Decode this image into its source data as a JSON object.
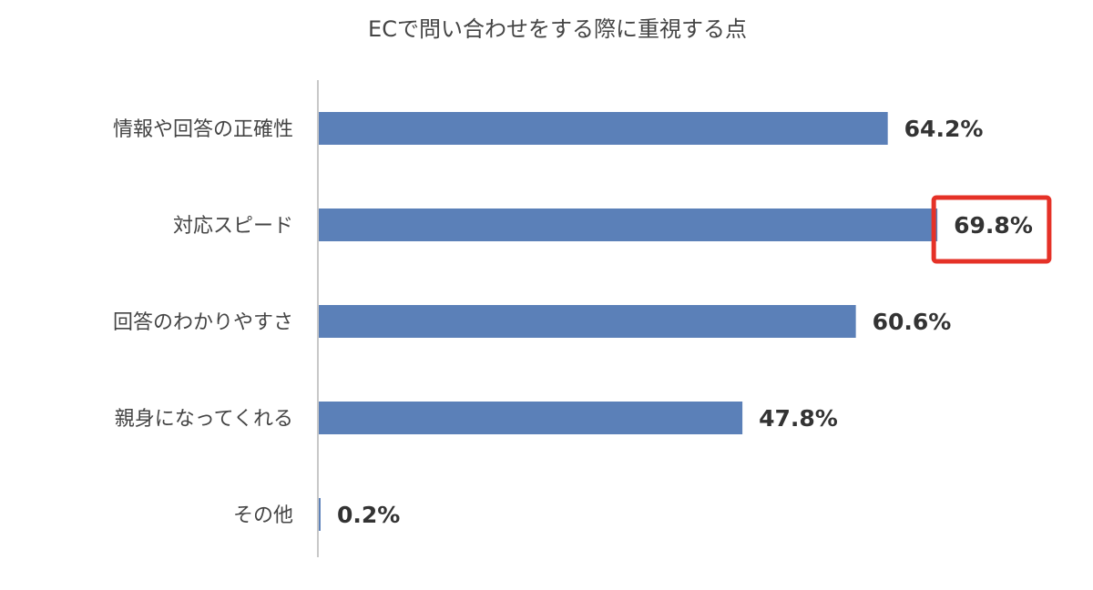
{
  "chart_data": {
    "type": "bar",
    "orientation": "horizontal",
    "title": "ECで問い合わせをする際に重視する点",
    "categories": [
      "情報や回答の正確性",
      "対応スピード",
      "回答のわかりやすさ",
      "親身になってくれる",
      "その他"
    ],
    "values": [
      64.2,
      69.8,
      60.6,
      47.8,
      0.2
    ],
    "value_labels": [
      "64.2%",
      "69.8%",
      "60.6%",
      "47.8%",
      "0.2%"
    ],
    "highlight_index": 1,
    "xlim": [
      0,
      80
    ],
    "grid": false,
    "colors": {
      "bar": "#5b80b8",
      "highlight": "#e53127",
      "axis": "#c8c8c8",
      "text": "#444444"
    }
  }
}
